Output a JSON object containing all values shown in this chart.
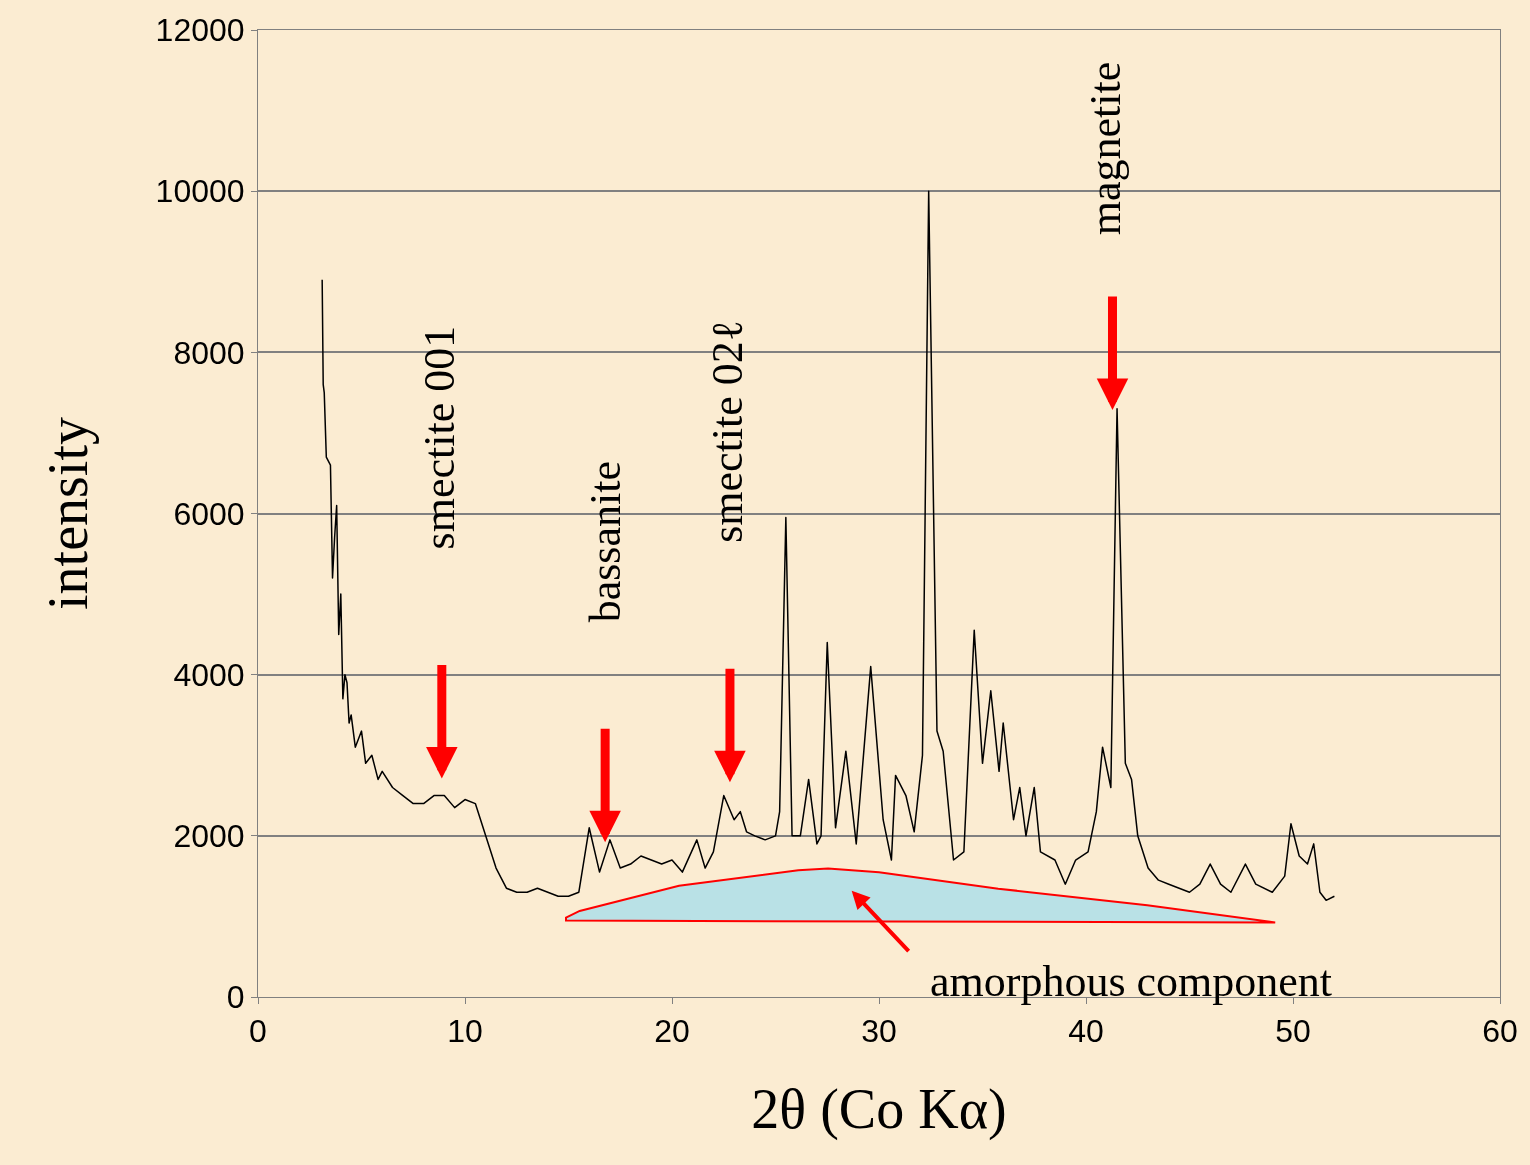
{
  "chart_data": {
    "type": "line",
    "xlabel": "2θ (Co Kα)",
    "ylabel": "intensity",
    "xlim": [
      0,
      60
    ],
    "xticks": [
      0,
      10,
      20,
      30,
      40,
      50,
      60
    ],
    "ylim": [
      0,
      12000
    ],
    "yticks": [
      0,
      2000,
      4000,
      6000,
      8000,
      10000,
      12000
    ],
    "grid": "y",
    "series": [
      {
        "color": "#000000",
        "x": [
          3.1,
          3.15,
          3.2,
          3.3,
          3.5,
          3.6,
          3.7,
          3.8,
          3.9,
          4.0,
          4.1,
          4.2,
          4.3,
          4.4,
          4.5,
          4.7,
          5.0,
          5.2,
          5.5,
          5.8,
          6.0,
          6.5,
          7.0,
          7.5,
          8.0,
          8.5,
          9.0,
          9.5,
          10.0,
          10.5,
          11.0,
          11.5,
          12.0,
          12.5,
          13.0,
          13.5,
          14.0,
          14.5,
          15.0,
          15.5,
          16.0,
          16.5,
          17.0,
          17.5,
          18.0,
          18.5,
          19.0,
          19.5,
          20.0,
          20.5,
          21.2,
          21.6,
          22.0,
          22.5,
          23.0,
          23.3,
          23.6,
          24.0,
          24.5,
          25.0,
          25.2,
          25.5,
          25.8,
          26.2,
          26.6,
          27.0,
          27.2,
          27.5,
          27.9,
          28.4,
          28.9,
          29.6,
          30.2,
          30.6,
          30.8,
          31.3,
          31.7,
          32.1,
          32.4,
          32.8,
          33.1,
          33.6,
          34.1,
          34.6,
          35.0,
          35.4,
          35.8,
          36.0,
          36.5,
          36.8,
          37.1,
          37.5,
          37.8,
          38.5,
          39.0,
          39.5,
          40.1,
          40.5,
          40.8,
          41.2,
          41.5,
          41.9,
          42.2,
          42.5,
          43.0,
          43.5,
          44.0,
          44.5,
          45.0,
          45.5,
          46.0,
          46.5,
          47.0,
          47.7,
          48.2,
          49.0,
          49.6,
          49.9,
          50.3,
          50.7,
          51.0,
          51.3,
          51.6,
          52.0
        ],
        "values": [
          8900,
          7600,
          7500,
          6700,
          6600,
          5200,
          5700,
          6100,
          4500,
          5000,
          3700,
          4000,
          3900,
          3400,
          3500,
          3100,
          3300,
          2900,
          3000,
          2700,
          2800,
          2600,
          2500,
          2400,
          2400,
          2500,
          2500,
          2350,
          2450,
          2400,
          2000,
          1600,
          1350,
          1300,
          1300,
          1350,
          1300,
          1250,
          1250,
          1300,
          2100,
          1550,
          1950,
          1600,
          1650,
          1750,
          1700,
          1650,
          1700,
          1550,
          1950,
          1600,
          1800,
          2500,
          2200,
          2300,
          2050,
          2000,
          1950,
          2000,
          2300,
          5950,
          2000,
          2000,
          2700,
          1900,
          2000,
          4400,
          2100,
          3050,
          1900,
          4100,
          2200,
          1700,
          2750,
          2500,
          2050,
          3000,
          10000,
          3300,
          3050,
          1700,
          1800,
          4550,
          2900,
          3800,
          2800,
          3400,
          2200,
          2600,
          2000,
          2600,
          1800,
          1700,
          1400,
          1700,
          1800,
          2300,
          3100,
          2600,
          7300,
          2900,
          2700,
          2000,
          1600,
          1450,
          1400,
          1350,
          1300,
          1400,
          1650,
          1400,
          1300,
          1650,
          1400,
          1300,
          1500,
          2150,
          1750,
          1650,
          1900,
          1300,
          1200,
          1250
        ]
      }
    ],
    "annotations": [
      "smectite 001",
      "bassanite",
      "smectite 02ℓ",
      "magnetite",
      "amorphous component"
    ]
  }
}
